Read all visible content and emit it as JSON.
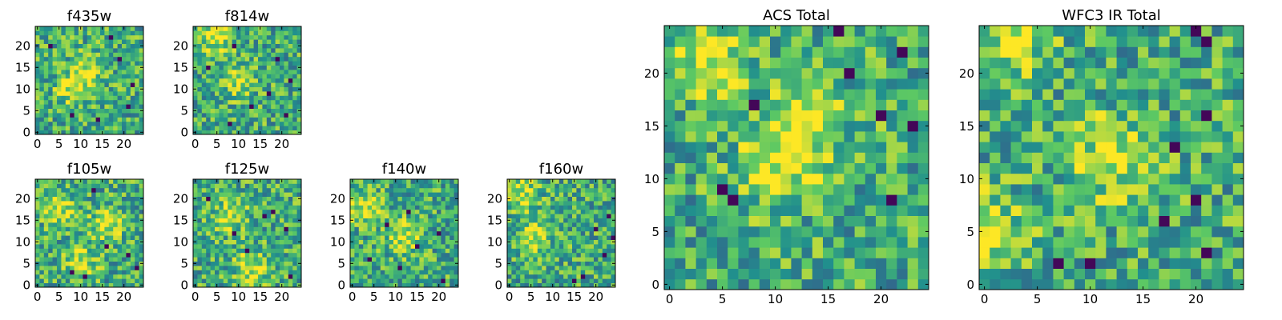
{
  "figure": {
    "colormap": "viridis",
    "colormap_stops": [
      "#440154",
      "#3b528b",
      "#21908d",
      "#5dc963",
      "#fde725"
    ]
  },
  "chart_data": [
    {
      "type": "heatmap",
      "title": "f435w",
      "grid_size": [
        25,
        25
      ],
      "x_ticks": [
        "0",
        "5",
        "10",
        "15",
        "20"
      ],
      "y_ticks": [
        "0",
        "5",
        "10",
        "15",
        "20"
      ],
      "xlim": [
        -0.5,
        24.5
      ],
      "ylim": [
        -0.5,
        24.5
      ],
      "dark_pixels": [
        [
          17,
          22
        ],
        [
          19,
          17
        ],
        [
          21,
          6
        ],
        [
          14,
          3
        ],
        [
          3,
          20
        ],
        [
          22,
          11
        ],
        [
          8,
          4
        ]
      ],
      "hot_spots": [
        [
          12,
          15
        ],
        [
          8,
          10
        ]
      ],
      "seed": 11
    },
    {
      "type": "heatmap",
      "title": "f814w",
      "grid_size": [
        25,
        25
      ],
      "x_ticks": [
        "0",
        "5",
        "10",
        "15",
        "20"
      ],
      "y_ticks": [
        "0",
        "5",
        "10",
        "15",
        "20"
      ],
      "xlim": [
        -0.5,
        24.5
      ],
      "ylim": [
        -0.5,
        24.5
      ],
      "dark_pixels": [
        [
          19,
          17
        ],
        [
          13,
          6
        ],
        [
          3,
          15
        ],
        [
          21,
          4
        ],
        [
          8,
          2
        ],
        [
          22,
          12
        ],
        [
          17,
          9
        ],
        [
          9,
          20
        ]
      ],
      "hot_spots": [
        [
          10,
          12
        ],
        [
          5,
          22
        ]
      ],
      "seed": 23
    },
    {
      "type": "heatmap",
      "title": "f105w",
      "grid_size": [
        25,
        25
      ],
      "x_ticks": [
        "0",
        "5",
        "10",
        "15",
        "20"
      ],
      "y_ticks": [
        "0",
        "5",
        "10",
        "15",
        "20"
      ],
      "xlim": [
        -0.5,
        24.5
      ],
      "ylim": [
        -0.5,
        24.5
      ],
      "dark_pixels": [
        [
          11,
          2
        ],
        [
          8,
          3
        ],
        [
          21,
          7
        ],
        [
          16,
          9
        ],
        [
          13,
          22
        ],
        [
          23,
          4
        ]
      ],
      "hot_spots": [
        [
          10,
          5
        ],
        [
          16,
          14
        ],
        [
          5,
          18
        ]
      ],
      "seed": 37
    },
    {
      "type": "heatmap",
      "title": "f125w",
      "grid_size": [
        25,
        25
      ],
      "x_ticks": [
        "0",
        "5",
        "10",
        "15",
        "20"
      ],
      "y_ticks": [
        "0",
        "5",
        "10",
        "15",
        "20"
      ],
      "xlim": [
        -0.5,
        24.5
      ],
      "ylim": [
        -0.5,
        24.5
      ],
      "dark_pixels": [
        [
          16,
          16
        ],
        [
          18,
          17
        ],
        [
          21,
          13
        ],
        [
          9,
          12
        ],
        [
          22,
          2
        ],
        [
          3,
          20
        ],
        [
          12,
          8
        ]
      ],
      "hot_spots": [
        [
          8,
          16
        ],
        [
          13,
          4
        ]
      ],
      "seed": 41
    },
    {
      "type": "heatmap",
      "title": "f140w",
      "grid_size": [
        25,
        25
      ],
      "x_ticks": [
        "0",
        "5",
        "10",
        "15",
        "20"
      ],
      "y_ticks": [
        "0",
        "5",
        "10",
        "15",
        "20"
      ],
      "xlim": [
        -0.5,
        24.5
      ],
      "ylim": [
        -0.5,
        24.5
      ],
      "dark_pixels": [
        [
          8,
          14
        ],
        [
          13,
          17
        ],
        [
          4,
          6
        ],
        [
          20,
          12
        ],
        [
          21,
          1
        ],
        [
          15,
          9
        ],
        [
          11,
          4
        ]
      ],
      "hot_spots": [
        [
          3,
          18
        ],
        [
          12,
          11
        ]
      ],
      "seed": 53
    },
    {
      "type": "heatmap",
      "title": "f160w",
      "grid_size": [
        25,
        25
      ],
      "x_ticks": [
        "0",
        "5",
        "10",
        "15",
        "20"
      ],
      "y_ticks": [
        "0",
        "5",
        "10",
        "15",
        "20"
      ],
      "xlim": [
        -0.5,
        24.5
      ],
      "ylim": [
        -0.5,
        24.5
      ],
      "dark_pixels": [
        [
          20,
          13
        ],
        [
          22,
          7
        ],
        [
          17,
          2
        ],
        [
          23,
          16
        ],
        [
          15,
          1
        ],
        [
          24,
          11
        ]
      ],
      "hot_spots": [
        [
          3,
          21
        ],
        [
          6,
          12
        ]
      ],
      "seed": 67
    },
    {
      "type": "heatmap",
      "title": "ACS Total",
      "grid_size": [
        25,
        25
      ],
      "x_ticks": [
        "0",
        "5",
        "10",
        "15",
        "20"
      ],
      "y_ticks": [
        "0",
        "5",
        "10",
        "15",
        "20"
      ],
      "xlim": [
        -0.5,
        24.5
      ],
      "ylim": [
        -0.5,
        24.5
      ],
      "dark_pixels": [
        [
          16,
          24
        ],
        [
          17,
          20
        ],
        [
          8,
          17
        ],
        [
          5,
          9
        ],
        [
          6,
          8
        ],
        [
          20,
          16
        ],
        [
          23,
          15
        ],
        [
          21,
          8
        ],
        [
          22,
          22
        ]
      ],
      "hot_spots": [
        [
          4,
          21
        ],
        [
          10,
          11
        ],
        [
          13,
          15
        ]
      ],
      "seed": 79
    },
    {
      "type": "heatmap",
      "title": "WFC3 IR Total",
      "grid_size": [
        25,
        25
      ],
      "x_ticks": [
        "0",
        "5",
        "10",
        "15",
        "20"
      ],
      "y_ticks": [
        "0",
        "5",
        "10",
        "15",
        "20"
      ],
      "xlim": [
        -0.5,
        24.5
      ],
      "ylim": [
        -0.5,
        24.5
      ],
      "dark_pixels": [
        [
          20,
          24
        ],
        [
          21,
          23
        ],
        [
          21,
          16
        ],
        [
          21,
          3
        ],
        [
          7,
          2
        ],
        [
          20,
          8
        ],
        [
          18,
          13
        ],
        [
          17,
          6
        ],
        [
          10,
          2
        ]
      ],
      "hot_spots": [
        [
          12,
          12
        ],
        [
          3,
          24
        ],
        [
          0,
          5
        ]
      ],
      "seed": 97
    }
  ]
}
